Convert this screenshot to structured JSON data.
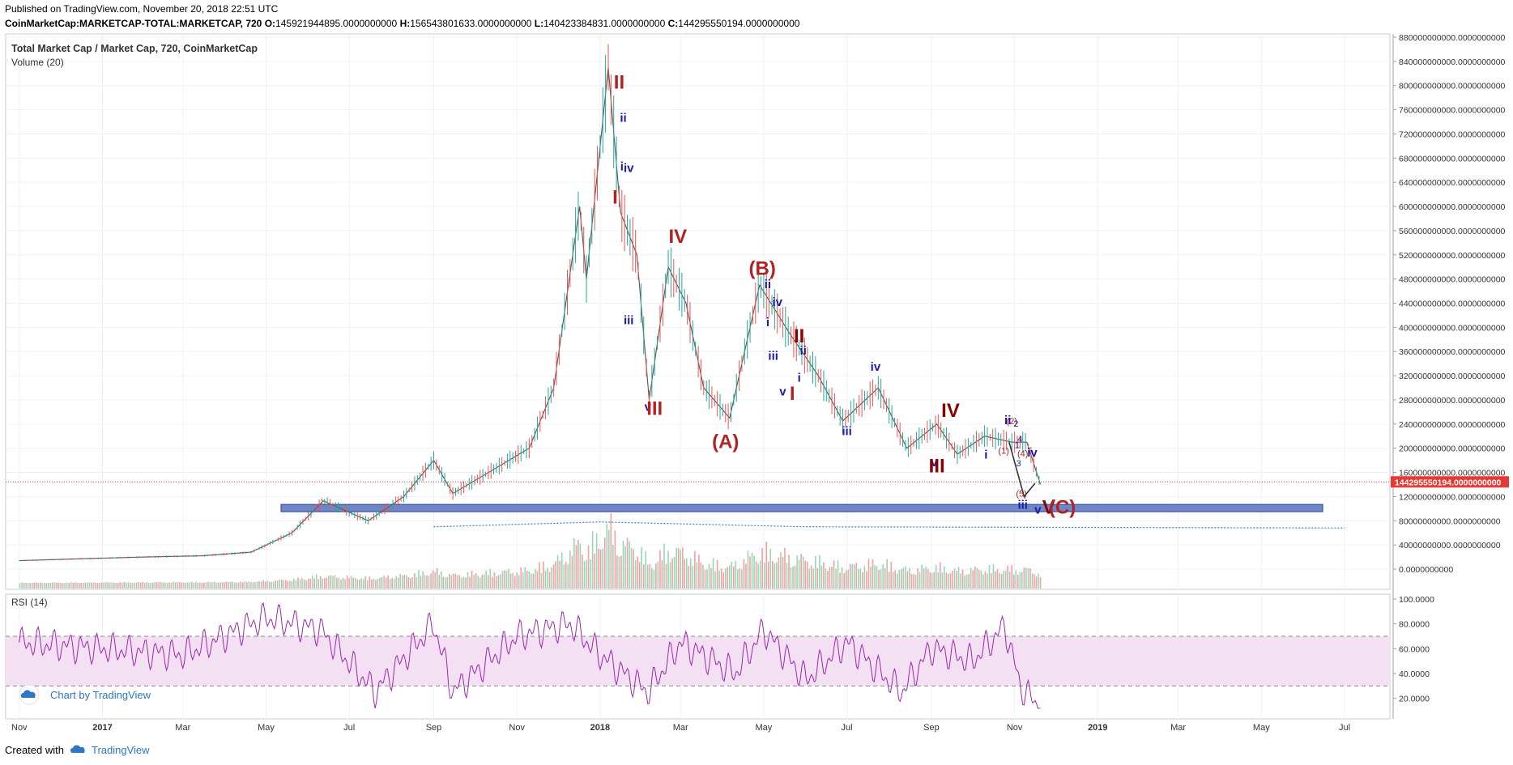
{
  "header": {
    "published": "Published on TradingView.com, November 20, 2018 22:51 UTC",
    "symbol": "CoinMarketCap:MARKETCAP-TOTAL:MARKETCAP, 720",
    "o_label": "O:",
    "o_value": "145921944895.0000000000",
    "h_label": "H:",
    "h_value": "156543801633.0000000000",
    "l_label": "L:",
    "l_value": "140423384831.0000000000",
    "c_label": "C:",
    "c_value": "144295550194.0000000000"
  },
  "footer": {
    "created_with": "Created with",
    "brand": "TradingView"
  },
  "colors": {
    "up": "#26a69a",
    "down": "#ef5350",
    "rsi": "#9c27b0",
    "wave_red": "#b22222",
    "wave_darkred": "#8b0000",
    "wave_blue": "#1a1aa6",
    "price_line": "#e53935",
    "zone": "#6f86c9"
  },
  "chart_data": [
    {
      "type": "line",
      "title": "Total Market Cap / Market Cap, 720, CoinMarketCap",
      "subtitle": "Volume (20)",
      "xlabel": "",
      "ylabel": "",
      "x_ticks": [
        "Nov",
        "2017",
        "Mar",
        "May",
        "Jul",
        "Sep",
        "Nov",
        "2018",
        "Mar",
        "May",
        "Jul",
        "Sep",
        "Nov",
        "2019",
        "Mar",
        "May",
        "Jul"
      ],
      "y_ticks": [
        "880000000000.0000000000",
        "840000000000.0000000000",
        "800000000000.0000000000",
        "760000000000.0000000000",
        "720000000000.0000000000",
        "680000000000.0000000000",
        "640000000000.0000000000",
        "600000000000.0000000000",
        "560000000000.0000000000",
        "520000000000.0000000000",
        "480000000000.0000000000",
        "440000000000.0000000000",
        "400000000000.0000000000",
        "360000000000.0000000000",
        "320000000000.0000000000",
        "280000000000.0000000000",
        "240000000000.0000000000",
        "200000000000.0000000000",
        "160000000000.0000000000",
        "120000000000.0000000000",
        "80000000000.0000000000",
        "40000000000.0000000000",
        "0.0000000000"
      ],
      "ylim": [
        0,
        880000000000
      ],
      "price_label": "144295550194.0000000000",
      "price_value": 144295550194,
      "series": [
        {
          "name": "",
          "x": [
            "2016-11-01",
            "2016-12-15",
            "2017-02-01",
            "2017-03-15",
            "2017-04-20",
            "2017-05-20",
            "2017-06-12",
            "2017-07-15",
            "2017-08-10",
            "2017-09-01",
            "2017-09-15",
            "2017-10-15",
            "2017-11-10",
            "2017-11-28",
            "2017-12-17",
            "2017-12-22",
            "2018-01-07",
            "2018-01-16",
            "2018-01-28",
            "2018-02-06",
            "2018-02-20",
            "2018-03-05",
            "2018-03-18",
            "2018-04-06",
            "2018-04-28",
            "2018-05-20",
            "2018-06-10",
            "2018-06-28",
            "2018-07-24",
            "2018-08-14",
            "2018-09-05",
            "2018-09-20",
            "2018-10-10",
            "2018-10-30",
            "2018-11-10",
            "2018-11-20"
          ],
          "values": [
            14000000000,
            17000000000,
            20000000000,
            22000000000,
            28000000000,
            60000000000,
            113000000000,
            80000000000,
            120000000000,
            180000000000,
            125000000000,
            165000000000,
            200000000000,
            300000000000,
            600000000000,
            480000000000,
            830000000000,
            590000000000,
            520000000000,
            280000000000,
            500000000000,
            440000000000,
            300000000000,
            250000000000,
            470000000000,
            390000000000,
            320000000000,
            245000000000,
            300000000000,
            200000000000,
            240000000000,
            190000000000,
            220000000000,
            210000000000,
            210000000000,
            140000000000
          ]
        }
      ],
      "support_zone": {
        "from": 95000000000,
        "to": 107000000000,
        "start": "2017-05-12",
        "end": "2019-06-15"
      },
      "volume_ma_label": "Volume (20)",
      "wave_labels": [
        {
          "text": "II",
          "x": "2018-01-15",
          "y": 795000000000,
          "color": "#b22222"
        },
        {
          "text": "ii",
          "x": "2018-01-18",
          "y": 740000000000,
          "color": "#1a1aa6"
        },
        {
          "text": "iv",
          "x": "2018-01-22",
          "y": 657000000000,
          "color": "#1a1aa6"
        },
        {
          "text": "i",
          "x": "2018-01-17",
          "y": 660000000000,
          "color": "#1a1aa6"
        },
        {
          "text": "I",
          "x": "2018-01-12",
          "y": 605000000000,
          "color": "#b22222"
        },
        {
          "text": "IV",
          "x": "2018-02-27",
          "y": 540000000000,
          "color": "#b22222"
        },
        {
          "text": "iii",
          "x": "2018-01-22",
          "y": 405000000000,
          "color": "#1a1aa6"
        },
        {
          "text": "v",
          "x": "2018-02-05",
          "y": 262000000000,
          "color": "#1a1aa6"
        },
        {
          "text": "III",
          "x": "2018-02-10",
          "y": 255000000000,
          "color": "#b22222"
        },
        {
          "text": "(A)",
          "x": "2018-04-03",
          "y": 200000000000,
          "color": "#b22222"
        },
        {
          "text": "(B)",
          "x": "2018-04-30",
          "y": 487000000000,
          "color": "#b22222"
        },
        {
          "text": "ii",
          "x": "2018-05-04",
          "y": 465000000000,
          "color": "#1a1aa6"
        },
        {
          "text": "iv",
          "x": "2018-05-11",
          "y": 435000000000,
          "color": "#1a1aa6"
        },
        {
          "text": "i",
          "x": "2018-05-04",
          "y": 402000000000,
          "color": "#1a1aa6"
        },
        {
          "text": "II",
          "x": "2018-05-27",
          "y": 375000000000,
          "color": "#8b0000"
        },
        {
          "text": "ii",
          "x": "2018-05-30",
          "y": 355000000000,
          "color": "#1a1aa6"
        },
        {
          "text": "iii",
          "x": "2018-05-08",
          "y": 346000000000,
          "color": "#1a1aa6"
        },
        {
          "text": "i",
          "x": "2018-05-27",
          "y": 310000000000,
          "color": "#1a1aa6"
        },
        {
          "text": "v",
          "x": "2018-05-15",
          "y": 287000000000,
          "color": "#1a1aa6"
        },
        {
          "text": "I",
          "x": "2018-05-22",
          "y": 280000000000,
          "color": "#b22222"
        },
        {
          "text": "iv",
          "x": "2018-07-22",
          "y": 328000000000,
          "color": "#1a1aa6"
        },
        {
          "text": "iii",
          "x": "2018-07-01",
          "y": 222000000000,
          "color": "#1a1aa6"
        },
        {
          "text": "IV",
          "x": "2018-09-15",
          "y": 252000000000,
          "color": "#8b0000"
        },
        {
          "text": "ii",
          "x": "2018-10-27",
          "y": 240000000000,
          "color": "#1a1aa6"
        },
        {
          "text": "(2)",
          "x": "2018-10-30",
          "y": 240000000000,
          "color": "#b22222"
        },
        {
          "text": "2",
          "x": "2018-11-02",
          "y": 236000000000,
          "color": "#1a1aa6"
        },
        {
          "text": "4",
          "x": "2018-11-05",
          "y": 210000000000,
          "color": "#1a1aa6"
        },
        {
          "text": "1",
          "x": "2018-11-03",
          "y": 200000000000,
          "color": "#1a1aa6"
        },
        {
          "text": "(1)",
          "x": "2018-10-24",
          "y": 191000000000,
          "color": "#b22222"
        },
        {
          "text": "i",
          "x": "2018-10-11",
          "y": 183000000000,
          "color": "#1a1aa6"
        },
        {
          "text": "(4)",
          "x": "2018-11-07",
          "y": 186000000000,
          "color": "#b22222"
        },
        {
          "text": "iv",
          "x": "2018-11-14",
          "y": 186000000000,
          "color": "#1a1aa6"
        },
        {
          "text": "3",
          "x": "2018-11-04",
          "y": 170000000000,
          "color": "#1a1aa6"
        },
        {
          "text": "v",
          "x": "2018-09-03",
          "y": 170000000000,
          "color": "#1a1aa6"
        },
        {
          "text": "III",
          "x": "2018-09-05",
          "y": 160000000000,
          "color": "#8b0000"
        },
        {
          "text": "(5)",
          "x": "2018-11-06",
          "y": 120000000000,
          "color": "#b22222"
        },
        {
          "text": "iii",
          "x": "2018-11-07",
          "y": 100000000000,
          "color": "#1a1aa6"
        },
        {
          "text": "v",
          "x": "2018-11-18",
          "y": 92000000000,
          "color": "#1a1aa6"
        },
        {
          "text": "V",
          "x": "2018-11-26",
          "y": 92000000000,
          "color": "#8b0000"
        },
        {
          "text": "(C)",
          "x": "2018-12-06",
          "y": 92000000000,
          "color": "#b22222"
        }
      ]
    },
    {
      "type": "line",
      "title": "RSI (14)",
      "y_ticks": [
        "100.0000",
        "80.0000",
        "60.0000",
        "40.0000",
        "20.0000"
      ],
      "ylim": [
        10,
        100
      ],
      "band": [
        30,
        70
      ],
      "series": [
        {
          "name": "",
          "x": [
            "2016-11-01",
            "2017-01-01",
            "2017-03-01",
            "2017-05-01",
            "2017-06-10",
            "2017-07-20",
            "2017-09-01",
            "2017-09-15",
            "2017-11-01",
            "2017-12-10",
            "2018-01-01",
            "2018-02-05",
            "2018-03-01",
            "2018-04-10",
            "2018-05-01",
            "2018-06-01",
            "2018-07-01",
            "2018-08-10",
            "2018-09-01",
            "2018-10-01",
            "2018-10-25",
            "2018-11-05",
            "2018-11-20"
          ],
          "values": [
            65,
            60,
            55,
            85,
            75,
            25,
            80,
            25,
            70,
            80,
            55,
            25,
            65,
            40,
            75,
            35,
            65,
            25,
            60,
            50,
            78,
            30,
            12
          ]
        }
      ]
    }
  ],
  "logo": {
    "text": "Chart by TradingView"
  }
}
